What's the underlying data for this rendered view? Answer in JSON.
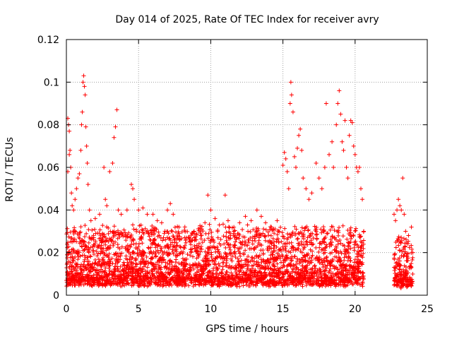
{
  "chart_data": {
    "type": "scatter",
    "title": "Day 014 of 2025, Rate Of TEC Index for receiver avry",
    "xlabel": "GPS time / hours",
    "ylabel": "ROTI / TECUs",
    "xlim": [
      0,
      25
    ],
    "ylim": [
      0,
      0.12
    ],
    "xticks": [
      0,
      5,
      10,
      15,
      20,
      25
    ],
    "yticks": [
      0,
      0.02,
      0.04,
      0.06,
      0.08,
      0.1,
      0.12
    ],
    "xtick_labels": [
      "0",
      "5",
      "10",
      "15",
      "20",
      "25"
    ],
    "ytick_labels": [
      "0",
      "0.02",
      "0.04",
      "0.06",
      "0.08",
      "0.1",
      "0.12"
    ],
    "grid": true,
    "marker": "+",
    "color": "#ff0000",
    "bands": [
      {
        "x": [
          0,
          20.6
        ],
        "y": [
          0.004,
          0.03
        ]
      },
      {
        "x": [
          22.7,
          24
        ],
        "y": [
          0.003,
          0.025
        ]
      }
    ],
    "series": [
      {
        "points": [
          [
            0.1,
            0.083
          ],
          [
            0.15,
            0.08
          ],
          [
            0.2,
            0.077
          ],
          [
            0.25,
            0.068
          ],
          [
            0.3,
            0.06
          ],
          [
            0.1,
            0.058
          ],
          [
            0.2,
            0.066
          ],
          [
            0.35,
            0.048
          ],
          [
            0.4,
            0.042
          ],
          [
            0.5,
            0.04
          ],
          [
            0.6,
            0.045
          ],
          [
            0.7,
            0.05
          ],
          [
            0.8,
            0.055
          ],
          [
            0.9,
            0.057
          ],
          [
            1.0,
            0.068
          ],
          [
            1.05,
            0.08
          ],
          [
            1.1,
            0.086
          ],
          [
            1.15,
            0.1
          ],
          [
            1.2,
            0.103
          ],
          [
            1.25,
            0.098
          ],
          [
            1.3,
            0.094
          ],
          [
            1.35,
            0.079
          ],
          [
            1.4,
            0.07
          ],
          [
            1.45,
            0.062
          ],
          [
            1.5,
            0.052
          ],
          [
            1.6,
            0.04
          ],
          [
            1.7,
            0.035
          ],
          [
            2.0,
            0.036
          ],
          [
            2.3,
            0.038
          ],
          [
            2.6,
            0.06
          ],
          [
            2.7,
            0.045
          ],
          [
            2.8,
            0.042
          ],
          [
            3.0,
            0.058
          ],
          [
            3.2,
            0.062
          ],
          [
            3.3,
            0.074
          ],
          [
            3.4,
            0.079
          ],
          [
            3.5,
            0.087
          ],
          [
            3.6,
            0.04
          ],
          [
            3.8,
            0.038
          ],
          [
            4.2,
            0.04
          ],
          [
            4.5,
            0.052
          ],
          [
            4.6,
            0.05
          ],
          [
            4.7,
            0.045
          ],
          [
            5.0,
            0.04
          ],
          [
            5.3,
            0.041
          ],
          [
            5.6,
            0.038
          ],
          [
            6.0,
            0.038
          ],
          [
            6.3,
            0.035
          ],
          [
            6.6,
            0.034
          ],
          [
            7.0,
            0.04
          ],
          [
            7.2,
            0.043
          ],
          [
            7.4,
            0.038
          ],
          [
            7.8,
            0.032
          ],
          [
            8.2,
            0.027
          ],
          [
            8.6,
            0.025
          ],
          [
            9.0,
            0.026
          ],
          [
            9.3,
            0.028
          ],
          [
            9.6,
            0.034
          ],
          [
            9.8,
            0.047
          ],
          [
            10.0,
            0.04
          ],
          [
            10.3,
            0.036
          ],
          [
            10.6,
            0.033
          ],
          [
            11.0,
            0.047
          ],
          [
            11.2,
            0.035
          ],
          [
            11.6,
            0.03
          ],
          [
            12.0,
            0.034
          ],
          [
            12.4,
            0.037
          ],
          [
            12.8,
            0.035
          ],
          [
            13.2,
            0.04
          ],
          [
            13.5,
            0.037
          ],
          [
            13.8,
            0.034
          ],
          [
            14.2,
            0.032
          ],
          [
            14.6,
            0.035
          ],
          [
            15.0,
            0.061
          ],
          [
            15.1,
            0.067
          ],
          [
            15.2,
            0.064
          ],
          [
            15.3,
            0.058
          ],
          [
            15.4,
            0.05
          ],
          [
            15.5,
            0.09
          ],
          [
            15.55,
            0.1
          ],
          [
            15.6,
            0.094
          ],
          [
            15.7,
            0.086
          ],
          [
            15.8,
            0.065
          ],
          [
            15.9,
            0.06
          ],
          [
            16.0,
            0.069
          ],
          [
            16.1,
            0.075
          ],
          [
            16.2,
            0.078
          ],
          [
            16.3,
            0.068
          ],
          [
            16.4,
            0.055
          ],
          [
            16.6,
            0.05
          ],
          [
            16.8,
            0.045
          ],
          [
            17.0,
            0.048
          ],
          [
            17.3,
            0.062
          ],
          [
            17.5,
            0.055
          ],
          [
            17.7,
            0.05
          ],
          [
            17.9,
            0.06
          ],
          [
            18.0,
            0.09
          ],
          [
            18.2,
            0.066
          ],
          [
            18.4,
            0.072
          ],
          [
            18.5,
            0.06
          ],
          [
            18.7,
            0.08
          ],
          [
            18.8,
            0.09
          ],
          [
            18.9,
            0.096
          ],
          [
            19.0,
            0.085
          ],
          [
            19.1,
            0.072
          ],
          [
            19.2,
            0.068
          ],
          [
            19.3,
            0.082
          ],
          [
            19.4,
            0.06
          ],
          [
            19.5,
            0.055
          ],
          [
            19.6,
            0.075
          ],
          [
            19.7,
            0.082
          ],
          [
            19.8,
            0.081
          ],
          [
            19.9,
            0.07
          ],
          [
            20.0,
            0.066
          ],
          [
            20.1,
            0.06
          ],
          [
            20.2,
            0.058
          ],
          [
            20.3,
            0.06
          ],
          [
            20.4,
            0.05
          ],
          [
            20.5,
            0.045
          ],
          [
            20.6,
            0.03
          ],
          [
            22.7,
            0.038
          ],
          [
            22.8,
            0.035
          ],
          [
            22.9,
            0.04
          ],
          [
            23.0,
            0.045
          ],
          [
            23.1,
            0.042
          ],
          [
            23.2,
            0.04
          ],
          [
            23.3,
            0.055
          ],
          [
            23.4,
            0.038
          ],
          [
            23.5,
            0.03
          ],
          [
            23.7,
            0.028
          ],
          [
            23.9,
            0.032
          ],
          [
            24.0,
            0.02
          ]
        ]
      }
    ]
  }
}
